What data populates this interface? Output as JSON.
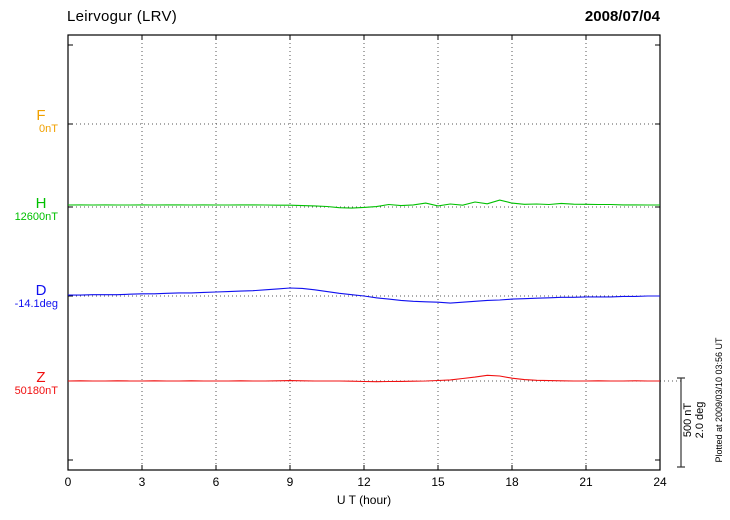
{
  "header": {
    "station": "Leirvogur (LRV)",
    "date": "2008/07/04"
  },
  "xaxis": {
    "label": "U T (hour)",
    "ticks": [
      "0",
      "3",
      "6",
      "9",
      "12",
      "15",
      "18",
      "21",
      "24"
    ]
  },
  "channels": [
    {
      "id": "F",
      "label": "F",
      "baseline_value": "0nT",
      "color": "#f0a000"
    },
    {
      "id": "H",
      "label": "H",
      "baseline_value": "12600nT",
      "color": "#00c000"
    },
    {
      "id": "D",
      "label": "D",
      "baseline_value": "-14.1deg",
      "color": "#1010f0"
    },
    {
      "id": "Z",
      "label": "Z",
      "baseline_value": "50180nT",
      "color": "#f01010"
    }
  ],
  "scale_bar": {
    "nt_label": "500 nT",
    "deg_label": "2.0 deg"
  },
  "footer_note": "Plotted at 2009/03/10 03:56 UT",
  "chart_data": {
    "type": "line",
    "title": "Leirvogur (LRV) magnetogram, 2008/07/04",
    "xlabel": "U T (hour)",
    "x_range": [
      0,
      24
    ],
    "x_ticks": [
      0,
      3,
      6,
      9,
      12,
      15,
      18,
      21,
      24
    ],
    "x_step_hours": 0.5,
    "grid": "dotted vertical lines every 3 h; dotted horizontal baseline per channel",
    "legend_position": "left margin",
    "values_mode": "deviation from channel baseline",
    "scale_reference": {
      "nT": 500,
      "deg": 2.0
    },
    "series": [
      {
        "name": "F",
        "unit": "nT",
        "baseline": 0,
        "baseline_label": "0nT",
        "color": "#f0a000",
        "values": []
      },
      {
        "name": "H",
        "unit": "nT",
        "baseline": 12600,
        "baseline_label": "12600nT",
        "color": "#00c000",
        "values": [
          11,
          12,
          11,
          12,
          11,
          11,
          12,
          11,
          12,
          12,
          11,
          12,
          11,
          11,
          12,
          12,
          11,
          10,
          10,
          8,
          6,
          3,
          -4,
          -6,
          -2,
          2,
          14,
          8,
          12,
          22,
          6,
          17,
          10,
          28,
          18,
          39,
          22,
          15,
          17,
          14,
          20,
          16,
          15,
          14,
          14,
          12,
          12,
          11,
          11
        ]
      },
      {
        "name": "D",
        "unit": "deg",
        "baseline": -14.1,
        "baseline_label": "-14.1deg",
        "color": "#1010f0",
        "values": [
          0.02,
          0.02,
          0.03,
          0.03,
          0.03,
          0.04,
          0.05,
          0.05,
          0.06,
          0.07,
          0.07,
          0.08,
          0.09,
          0.1,
          0.11,
          0.12,
          0.14,
          0.16,
          0.18,
          0.17,
          0.14,
          0.1,
          0.06,
          0.03,
          0.0,
          -0.04,
          -0.07,
          -0.1,
          -0.12,
          -0.13,
          -0.14,
          -0.16,
          -0.14,
          -0.12,
          -0.1,
          -0.09,
          -0.07,
          -0.06,
          -0.05,
          -0.04,
          -0.03,
          -0.03,
          -0.02,
          -0.02,
          -0.02,
          -0.01,
          -0.01,
          0.0,
          0.0
        ]
      },
      {
        "name": "Z",
        "unit": "nT",
        "baseline": 50180,
        "baseline_label": "50180nT",
        "color": "#f01010",
        "values": [
          0,
          1,
          0,
          0,
          1,
          0,
          0,
          1,
          0,
          0,
          1,
          0,
          0,
          0,
          1,
          0,
          0,
          1,
          2,
          1,
          0,
          0,
          0,
          -1,
          -3,
          -4,
          -3,
          -2,
          -1,
          0,
          3,
          6,
          14,
          22,
          32,
          28,
          16,
          8,
          4,
          2,
          1,
          0,
          0,
          1,
          0,
          0,
          1,
          0,
          0
        ]
      }
    ]
  }
}
